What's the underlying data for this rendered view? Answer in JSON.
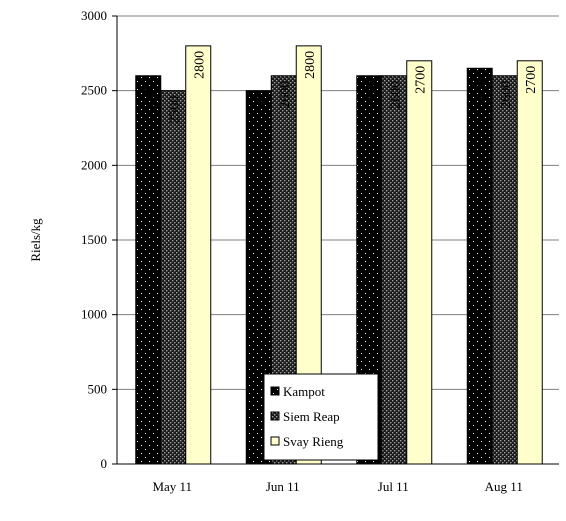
{
  "chart_data": {
    "type": "bar",
    "categories": [
      "May 11",
      "Jun 11",
      "Jul 11",
      "Aug 11"
    ],
    "series": [
      {
        "name": "Kampot",
        "values": [
          2600,
          2500,
          2600,
          2650
        ],
        "fill": "#000000",
        "dot": "#ffffff"
      },
      {
        "name": "Siem Reap",
        "values": [
          2500,
          2600,
          2600,
          2600
        ],
        "fill": "#222222",
        "dot": "#9a9a9a"
      },
      {
        "name": "Svay Rieng",
        "values": [
          2800,
          2800,
          2700,
          2700
        ],
        "fill": "#ffffcc",
        "dot": null
      }
    ],
    "ylabel": "Riels/kg",
    "xlabel": "",
    "ylim": [
      0,
      3000
    ],
    "yticks": [
      0,
      500,
      1000,
      1500,
      2000,
      2500,
      3000
    ],
    "grid": true,
    "legend_position": "bottom-center, inside plot",
    "data_labels": "rotated 90°, inside top of bars"
  }
}
